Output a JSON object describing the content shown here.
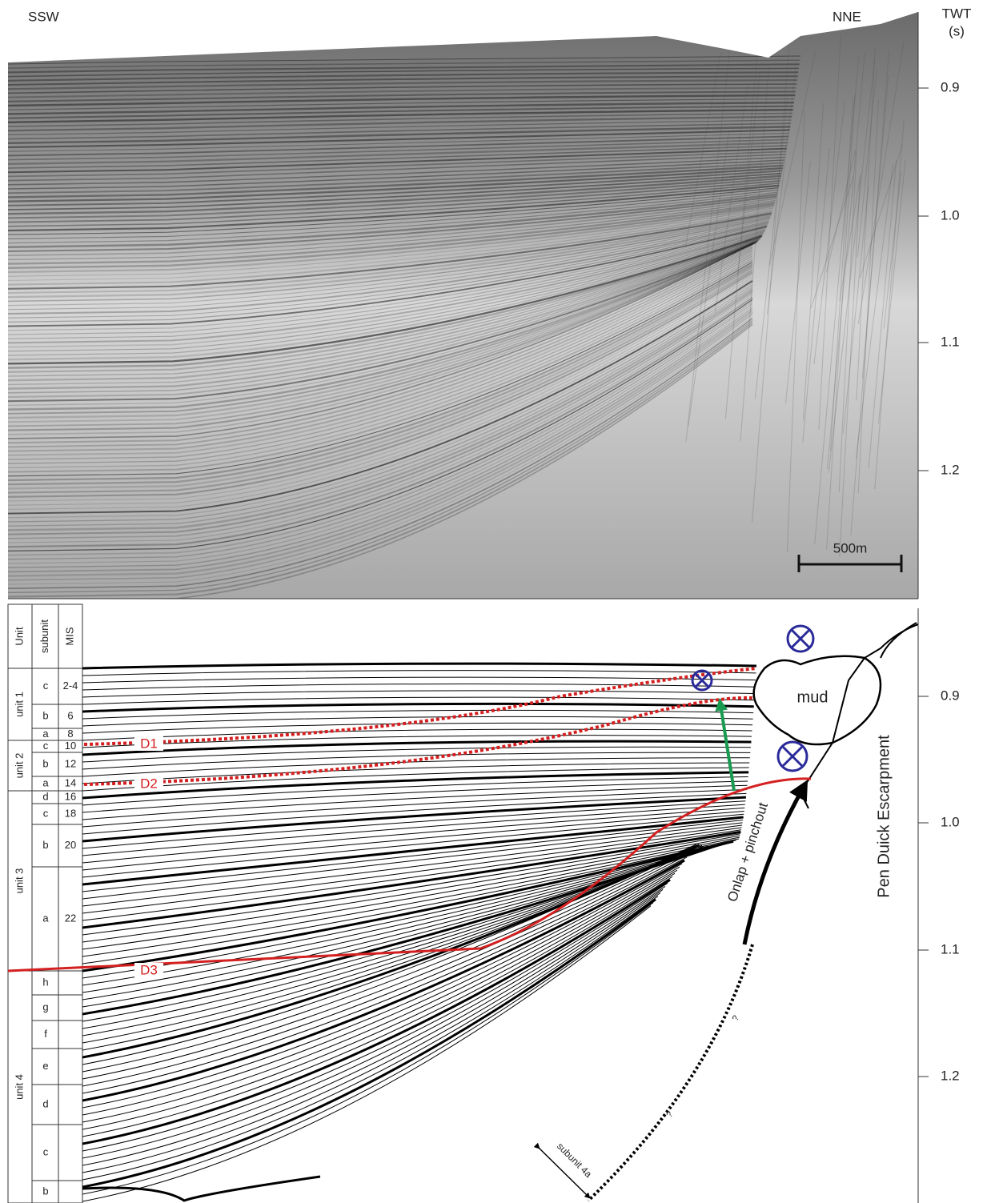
{
  "seismic_profile": {
    "left_label": "SSW",
    "right_label": "NNE",
    "axis_title": [
      "TWT",
      "(s)"
    ],
    "ticks": [
      "0.9",
      "1.0",
      "1.1",
      "1.2"
    ],
    "scale_bar": "500m"
  },
  "interpretation": {
    "headers": [
      "Unit",
      "subunit",
      "MIS"
    ],
    "units": [
      {
        "name": "unit 1",
        "subunits": [
          {
            "label": "c",
            "mis": "2-4"
          },
          {
            "label": "b",
            "mis": "6"
          },
          {
            "label": "a",
            "mis": "8"
          }
        ]
      },
      {
        "name": "unit 2",
        "subunits": [
          {
            "label": "c",
            "mis": "10"
          },
          {
            "label": "b",
            "mis": "12"
          },
          {
            "label": "a",
            "mis": "14"
          }
        ]
      },
      {
        "name": "unit 3",
        "subunits": [
          {
            "label": "d",
            "mis": "16"
          },
          {
            "label": "c",
            "mis": "18"
          },
          {
            "label": "b",
            "mis": "20"
          },
          {
            "label": "a",
            "mis": "22"
          }
        ]
      },
      {
        "name": "unit 4",
        "subunits": [
          {
            "label": "h"
          },
          {
            "label": "g"
          },
          {
            "label": "f"
          },
          {
            "label": "e"
          },
          {
            "label": "d"
          },
          {
            "label": "c"
          },
          {
            "label": "b"
          }
        ]
      }
    ],
    "discontinuities": [
      "D1",
      "D2",
      "D3"
    ],
    "mud": "mud",
    "onlap": "Onlap + pinchout",
    "escarpment": "Pen Duick Escarpment",
    "subunit_note": "subunit 4a",
    "query": "?",
    "ticks": [
      "0.9",
      "1.0",
      "1.1",
      "1.2"
    ]
  }
}
